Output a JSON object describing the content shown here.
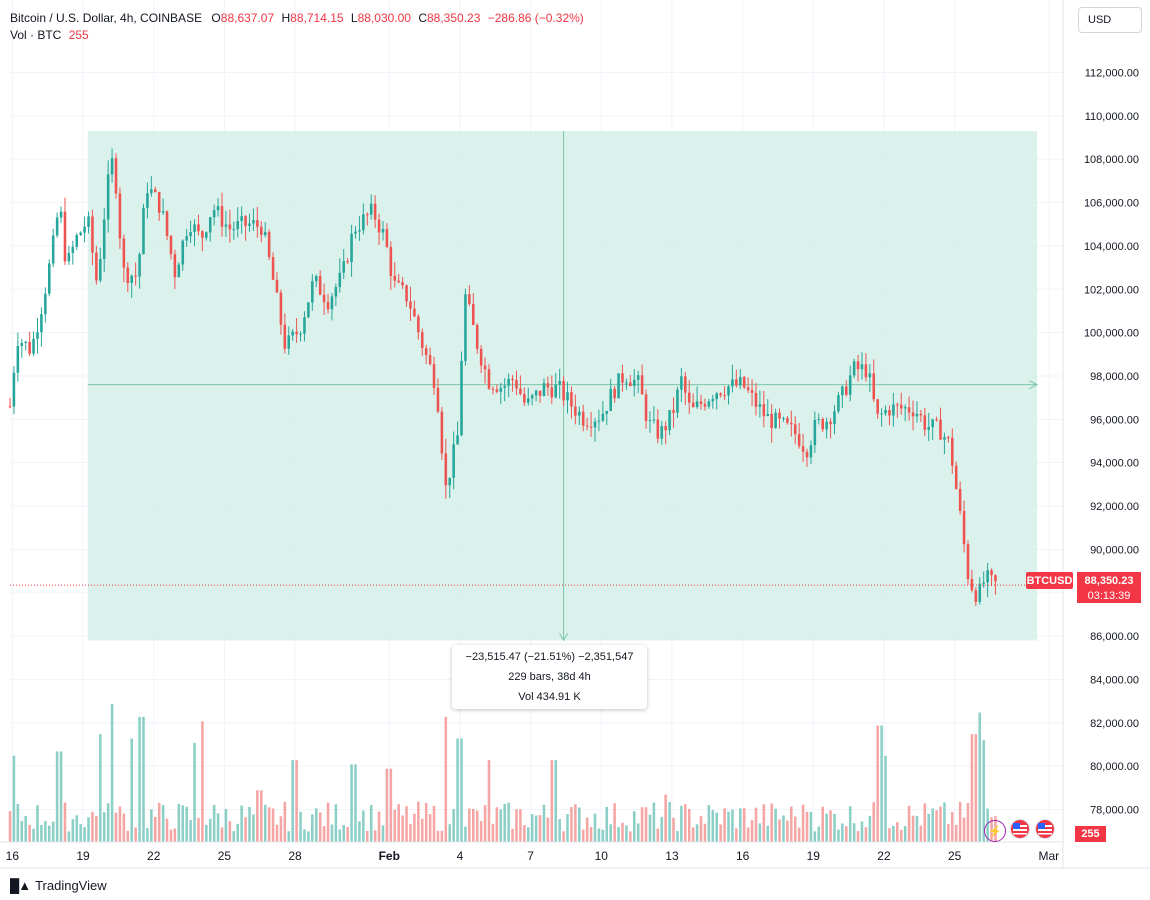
{
  "legend": {
    "symbol_line": "Bitcoin / U.S. Dollar, 4h, COINBASE",
    "o_key": "O",
    "o_val": "88,637.07",
    "h_key": "H",
    "h_val": "88,714.15",
    "l_key": "L",
    "l_val": "88,030.00",
    "c_key": "C",
    "c_val": "88,350.23",
    "change": "−286.86 (−0.32%)",
    "vol_label": "Vol · BTC",
    "vol_val": "255"
  },
  "currency": "USD",
  "price_tag": {
    "symbol": "BTCUSD",
    "price": "88,350.23",
    "countdown": "03:13:39"
  },
  "volume_tag": "255",
  "measure": {
    "line1": "−23,515.47 (−21.51%) −2,351,547",
    "line2": "229 bars, 38d 4h",
    "line3": "Vol 434.91 K"
  },
  "branding": "TradingView",
  "colors": {
    "up": "#26a69a",
    "down": "#ef5350",
    "measure_fill": "#d7efe9",
    "price_line": "#f23645"
  },
  "chart_data": {
    "type": "candlestick",
    "price_axis": {
      "ylim": [
        76500,
        113500
      ],
      "ticks": [
        112000,
        110000,
        108000,
        106000,
        104000,
        102000,
        100000,
        98000,
        96000,
        94000,
        92000,
        90000,
        88000,
        86000,
        84000,
        82000,
        80000,
        78000
      ],
      "tick_labels": [
        "112,000.00",
        "110,000.00",
        "108,000.00",
        "106,000.00",
        "104,000.00",
        "102,000.00",
        "100,000.00",
        "98,000.00",
        "96,000.00",
        "94,000.00",
        "92,000.00",
        "90,000.00",
        "88,000.00",
        "86,000.00",
        "84,000.00",
        "82,000.00",
        "80,000.00",
        "78,000.00"
      ]
    },
    "time_axis": {
      "labels": [
        "16",
        "19",
        "22",
        "25",
        "28",
        "Feb",
        "4",
        "7",
        "10",
        "13",
        "16",
        "19",
        "22",
        "25",
        "Mar"
      ],
      "days": [
        16,
        19,
        22,
        25,
        28,
        32,
        35,
        38,
        41,
        44,
        47,
        50,
        53,
        56,
        60
      ],
      "xlim": [
        15.9,
        60.6
      ]
    },
    "last_price": 88350.23,
    "measure_range": {
      "from_day": 19.2,
      "to_day": 59.5,
      "high": 109300,
      "low": 85800,
      "mid_price": 97600,
      "mid_day": 39.4
    },
    "anchors": [
      {
        "d": 15.9,
        "p": 96600
      },
      {
        "d": 16.2,
        "p": 99800
      },
      {
        "d": 16.8,
        "p": 99200
      },
      {
        "d": 17.3,
        "p": 101500
      },
      {
        "d": 17.7,
        "p": 103800
      },
      {
        "d": 18.0,
        "p": 106000
      },
      {
        "d": 18.3,
        "p": 103000
      },
      {
        "d": 18.7,
        "p": 104300
      },
      {
        "d": 19.2,
        "p": 105200
      },
      {
        "d": 19.6,
        "p": 102200
      },
      {
        "d": 20.0,
        "p": 106500
      },
      {
        "d": 20.3,
        "p": 108200
      },
      {
        "d": 20.7,
        "p": 102800
      },
      {
        "d": 21.3,
        "p": 102600
      },
      {
        "d": 21.7,
        "p": 106800
      },
      {
        "d": 22.3,
        "p": 105800
      },
      {
        "d": 22.9,
        "p": 102800
      },
      {
        "d": 23.5,
        "p": 105200
      },
      {
        "d": 24.0,
        "p": 104300
      },
      {
        "d": 24.5,
        "p": 105800
      },
      {
        "d": 25.2,
        "p": 104800
      },
      {
        "d": 26.0,
        "p": 105000
      },
      {
        "d": 26.6,
        "p": 104900
      },
      {
        "d": 27.0,
        "p": 102800
      },
      {
        "d": 27.6,
        "p": 99300
      },
      {
        "d": 28.2,
        "p": 100200
      },
      {
        "d": 28.8,
        "p": 102400
      },
      {
        "d": 29.4,
        "p": 101500
      },
      {
        "d": 30.0,
        "p": 102600
      },
      {
        "d": 30.5,
        "p": 104800
      },
      {
        "d": 31.3,
        "p": 105600
      },
      {
        "d": 31.8,
        "p": 104400
      },
      {
        "d": 32.2,
        "p": 102200
      },
      {
        "d": 32.8,
        "p": 101600
      },
      {
        "d": 33.5,
        "p": 99100
      },
      {
        "d": 34.0,
        "p": 97600
      },
      {
        "d": 34.4,
        "p": 92800
      },
      {
        "d": 34.9,
        "p": 95200
      },
      {
        "d": 35.2,
        "p": 101800
      },
      {
        "d": 35.7,
        "p": 99600
      },
      {
        "d": 36.2,
        "p": 97800
      },
      {
        "d": 36.8,
        "p": 97500
      },
      {
        "d": 37.3,
        "p": 97900
      },
      {
        "d": 37.8,
        "p": 96600
      },
      {
        "d": 38.6,
        "p": 97500
      },
      {
        "d": 39.2,
        "p": 97400
      },
      {
        "d": 39.7,
        "p": 96700
      },
      {
        "d": 40.3,
        "p": 96000
      },
      {
        "d": 41.0,
        "p": 96200
      },
      {
        "d": 41.5,
        "p": 97300
      },
      {
        "d": 42.0,
        "p": 98100
      },
      {
        "d": 42.6,
        "p": 97600
      },
      {
        "d": 43.0,
        "p": 95800
      },
      {
        "d": 43.5,
        "p": 95300
      },
      {
        "d": 44.0,
        "p": 96200
      },
      {
        "d": 44.4,
        "p": 97800
      },
      {
        "d": 44.8,
        "p": 96300
      },
      {
        "d": 45.3,
        "p": 96800
      },
      {
        "d": 45.8,
        "p": 97300
      },
      {
        "d": 46.3,
        "p": 97500
      },
      {
        "d": 47.0,
        "p": 97600
      },
      {
        "d": 47.5,
        "p": 96800
      },
      {
        "d": 48.0,
        "p": 96100
      },
      {
        "d": 48.7,
        "p": 95700
      },
      {
        "d": 49.3,
        "p": 95300
      },
      {
        "d": 49.7,
        "p": 94600
      },
      {
        "d": 50.1,
        "p": 95700
      },
      {
        "d": 50.6,
        "p": 96000
      },
      {
        "d": 51.2,
        "p": 97000
      },
      {
        "d": 51.7,
        "p": 98300
      },
      {
        "d": 52.3,
        "p": 98300
      },
      {
        "d": 52.7,
        "p": 96000
      },
      {
        "d": 53.2,
        "p": 96500
      },
      {
        "d": 53.8,
        "p": 96500
      },
      {
        "d": 54.3,
        "p": 96500
      },
      {
        "d": 54.8,
        "p": 95700
      },
      {
        "d": 55.4,
        "p": 95500
      },
      {
        "d": 55.8,
        "p": 94800
      },
      {
        "d": 56.2,
        "p": 91800
      },
      {
        "d": 56.6,
        "p": 88600
      },
      {
        "d": 57.0,
        "p": 87800
      },
      {
        "d": 57.3,
        "p": 88700
      },
      {
        "d": 57.6,
        "p": 88400
      },
      {
        "d": 57.8,
        "p": 88350.23
      }
    ],
    "volume_peaks": [
      {
        "d": 16.1,
        "v": 1.0
      },
      {
        "d": 18.0,
        "v": 1.05
      },
      {
        "d": 19.7,
        "v": 1.25
      },
      {
        "d": 20.3,
        "v": 1.6
      },
      {
        "d": 21.1,
        "v": 1.2
      },
      {
        "d": 21.5,
        "v": 1.45
      },
      {
        "d": 23.8,
        "v": 1.15
      },
      {
        "d": 24.1,
        "v": 1.4
      },
      {
        "d": 26.5,
        "v": 0.6
      },
      {
        "d": 28.0,
        "v": 0.95
      },
      {
        "d": 30.5,
        "v": 0.9
      },
      {
        "d": 32.0,
        "v": 0.85
      },
      {
        "d": 34.4,
        "v": 1.45
      },
      {
        "d": 35.0,
        "v": 1.2
      },
      {
        "d": 36.3,
        "v": 0.95
      },
      {
        "d": 39.0,
        "v": 0.95
      },
      {
        "d": 43.7,
        "v": 0.55
      },
      {
        "d": 49.8,
        "v": 0.35
      },
      {
        "d": 52.8,
        "v": 1.35
      },
      {
        "d": 53.0,
        "v": 1.0
      },
      {
        "d": 56.8,
        "v": 1.25
      },
      {
        "d": 57.0,
        "v": 1.5
      },
      {
        "d": 57.2,
        "v": 1.18
      }
    ]
  }
}
